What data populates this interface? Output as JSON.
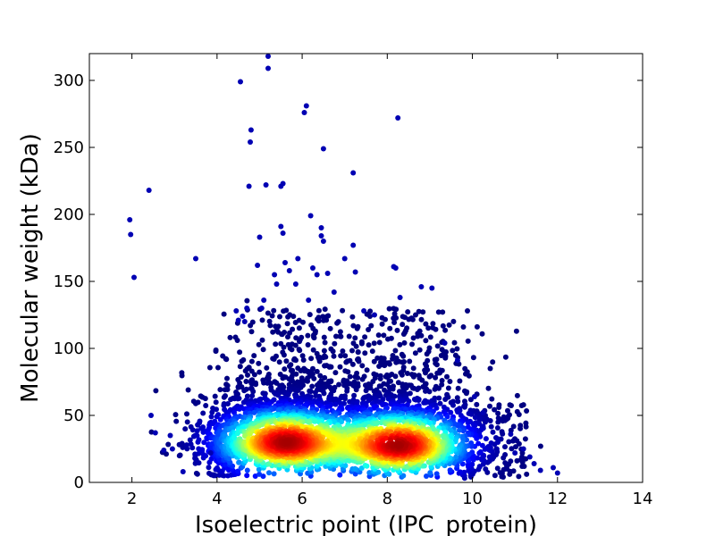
{
  "chart_data": {
    "type": "scatter",
    "title": "",
    "xlabel": "Isoelectric point (IPC_protein)",
    "ylabel": "Molecular weight (kDa)",
    "xlim": [
      1,
      14
    ],
    "ylim": [
      0,
      320
    ],
    "xticks": [
      2,
      4,
      6,
      8,
      10,
      12,
      14
    ],
    "yticks": [
      0,
      50,
      100,
      150,
      200,
      250,
      300
    ],
    "grid": false,
    "legend": "none",
    "colormap": "jet (point density)",
    "density_clusters": [
      {
        "x_center": 5.6,
        "y_center": 30,
        "peak": "high"
      },
      {
        "x_center": 8.3,
        "y_center": 28,
        "peak": "high"
      }
    ],
    "series": [
      {
        "points": [
          [
            1.95,
            196
          ],
          [
            1.97,
            185
          ],
          [
            2.05,
            153
          ],
          [
            2.4,
            218
          ],
          [
            2.45,
            50
          ],
          [
            2.55,
            37
          ],
          [
            2.75,
            24
          ],
          [
            2.9,
            35
          ],
          [
            2.95,
            25
          ],
          [
            3.2,
            8
          ],
          [
            3.5,
            167
          ],
          [
            3.85,
            22
          ],
          [
            4.45,
            128
          ],
          [
            4.5,
            121
          ],
          [
            4.55,
            299
          ],
          [
            4.6,
            124
          ],
          [
            4.65,
            120
          ],
          [
            4.7,
            130
          ],
          [
            4.75,
            221
          ],
          [
            4.78,
            254
          ],
          [
            4.8,
            263
          ],
          [
            4.95,
            162
          ],
          [
            5.0,
            183
          ],
          [
            5.05,
            130
          ],
          [
            5.1,
            136
          ],
          [
            5.15,
            222
          ],
          [
            5.2,
            309
          ],
          [
            5.35,
            155
          ],
          [
            5.4,
            148
          ],
          [
            5.5,
            221
          ],
          [
            5.5,
            191
          ],
          [
            5.55,
            223
          ],
          [
            5.55,
            186
          ],
          [
            5.6,
            164
          ],
          [
            5.7,
            158
          ],
          [
            5.85,
            148
          ],
          [
            5.9,
            167
          ],
          [
            6.05,
            276
          ],
          [
            6.1,
            281
          ],
          [
            6.15,
            136
          ],
          [
            6.2,
            199
          ],
          [
            6.25,
            160
          ],
          [
            6.35,
            155
          ],
          [
            6.45,
            184
          ],
          [
            6.45,
            190
          ],
          [
            6.5,
            180
          ],
          [
            6.5,
            249
          ],
          [
            6.6,
            156
          ],
          [
            6.75,
            142
          ],
          [
            7.0,
            167
          ],
          [
            7.2,
            231
          ],
          [
            7.2,
            177
          ],
          [
            7.25,
            157
          ],
          [
            7.45,
            128
          ],
          [
            7.7,
            125
          ],
          [
            8.15,
            161
          ],
          [
            8.2,
            160
          ],
          [
            8.25,
            272
          ],
          [
            8.3,
            138
          ],
          [
            8.8,
            146
          ],
          [
            9.05,
            145
          ],
          [
            9.35,
            104
          ],
          [
            9.65,
            91
          ],
          [
            10.05,
            64
          ],
          [
            10.25,
            52
          ],
          [
            10.6,
            30
          ],
          [
            10.9,
            36
          ],
          [
            11.0,
            22
          ],
          [
            11.2,
            25
          ],
          [
            11.35,
            19
          ],
          [
            11.45,
            14
          ],
          [
            11.6,
            9
          ],
          [
            11.9,
            11
          ],
          [
            12.0,
            7
          ],
          [
            5.2,
            318
          ]
        ]
      }
    ]
  }
}
